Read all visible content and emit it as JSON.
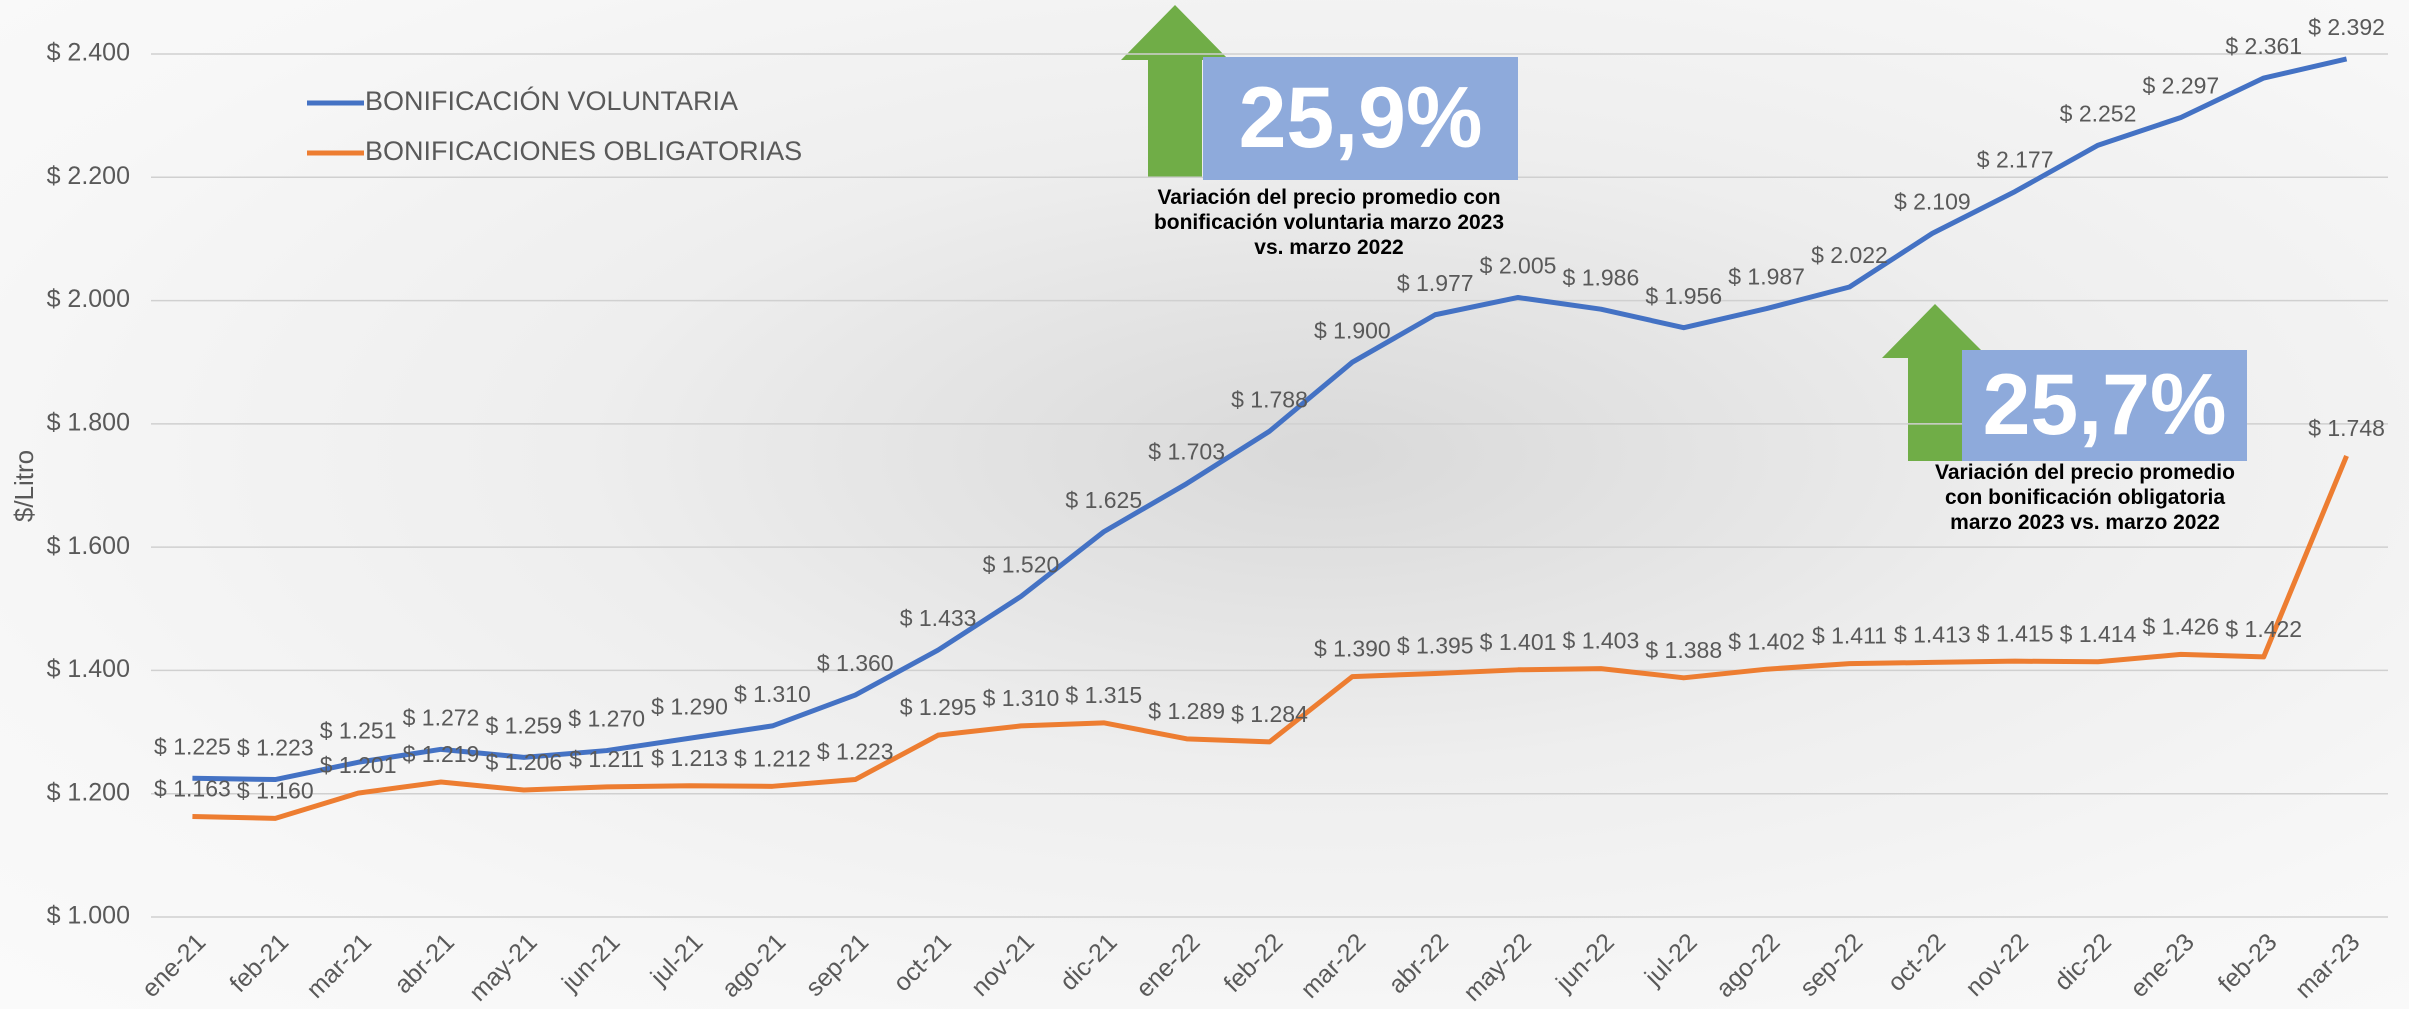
{
  "chart_data": {
    "type": "line",
    "y_label": "$/Litro",
    "categories": [
      "ene-21",
      "feb-21",
      "mar-21",
      "abr-21",
      "may-21",
      "jun-21",
      "jul-21",
      "ago-21",
      "sep-21",
      "oct-21",
      "nov-21",
      "dic-21",
      "ene-22",
      "feb-22",
      "mar-22",
      "abr-22",
      "may-22",
      "jun-22",
      "jul-22",
      "ago-22",
      "sep-22",
      "oct-22",
      "nov-22",
      "dic-22",
      "ene-23",
      "feb-23",
      "mar-23"
    ],
    "series": [
      {
        "name": "BONIFICACIÓN VOLUNTARIA",
        "color": "#4472c4",
        "values": [
          1225,
          1223,
          1251,
          1272,
          1259,
          1270,
          1290,
          1310,
          1360,
          1433,
          1520,
          1625,
          1703,
          1788,
          1900,
          1977,
          2005,
          1986,
          1956,
          1987,
          2022,
          2109,
          2177,
          2252,
          2297,
          2361,
          2392
        ],
        "value_labels": [
          "$ 1.225",
          "$ 1.223",
          "$ 1.251",
          "$ 1.272",
          "$ 1.259",
          "$ 1.270",
          "$ 1.290",
          "$ 1.310",
          "$ 1.360",
          "$ 1.433",
          "$ 1.520",
          "$ 1.625",
          "$ 1.703",
          "$ 1.788",
          "$ 1.900",
          "$ 1.977",
          "$ 2.005",
          "$ 1.986",
          "$ 1.956",
          "$ 1.987",
          "$ 2.022",
          "$ 2.109",
          "$ 2.177",
          "$ 2.252",
          "$ 2.297",
          "$ 2.361",
          "$ 2.392"
        ]
      },
      {
        "name": "BONIFICACIONES OBLIGATORIAS",
        "color": "#ed7d31",
        "values": [
          1163,
          1160,
          1201,
          1219,
          1206,
          1211,
          1213,
          1212,
          1223,
          1295,
          1310,
          1315,
          1289,
          1284,
          1390,
          1395,
          1401,
          1403,
          1388,
          1402,
          1411,
          1413,
          1415,
          1414,
          1426,
          1422,
          1748
        ],
        "value_labels": [
          "$ 1.163",
          "$ 1.160",
          "$ 1.201",
          "$ 1.219",
          "$ 1.206",
          "$ 1.211",
          "$ 1.213",
          "$ 1.212",
          "$ 1.223",
          "$ 1.295",
          "$ 1.310",
          "$ 1.315",
          "$ 1.289",
          "$ 1.284",
          "$ 1.390",
          "$ 1.395",
          "$ 1.401",
          "$ 1.403",
          "$ 1.388",
          "$ 1.402",
          "$ 1.411",
          "$ 1.413",
          "$ 1.415",
          "$ 1.414",
          "$ 1.426",
          "$ 1.422",
          "$ 1.748"
        ]
      }
    ],
    "ylim": [
      1000,
      2400
    ],
    "yticks": [
      {
        "value": 1000,
        "label": "$ 1.000"
      },
      {
        "value": 1200,
        "label": "$ 1.200"
      },
      {
        "value": 1400,
        "label": "$ 1.400"
      },
      {
        "value": 1600,
        "label": "$ 1.600"
      },
      {
        "value": 1800,
        "label": "$ 1.800"
      },
      {
        "value": 2000,
        "label": "$ 2.000"
      },
      {
        "value": 2200,
        "label": "$ 2.200"
      },
      {
        "value": 2400,
        "label": "$ 2.400"
      }
    ],
    "grid": true,
    "legend": "top-left",
    "annotations": [
      {
        "text": "25,9%",
        "caption": "Variación del precio promedio con bonificación voluntaria marzo 2023 vs. marzo 2022"
      },
      {
        "text": "25,7%",
        "caption": "Variación del precio promedio con bonificación obligatoria marzo 2023 vs. marzo 2022"
      }
    ]
  }
}
